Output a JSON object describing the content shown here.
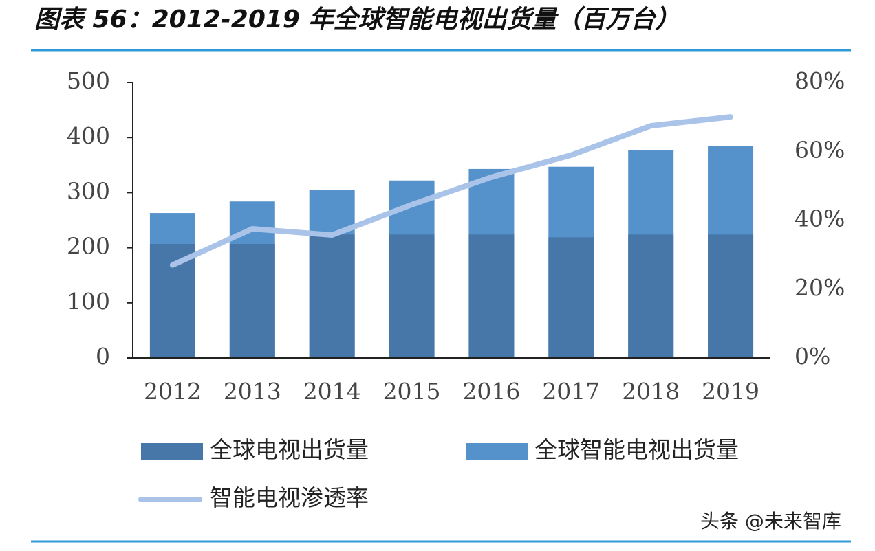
{
  "chart_data": {
    "type": "bar-line",
    "title": "图表 56：2012-2019 年全球智能电视出货量（百万台）",
    "categories": [
      "2012",
      "2013",
      "2014",
      "2015",
      "2016",
      "2017",
      "2018",
      "2019"
    ],
    "series": [
      {
        "name": "全球电视出货量",
        "color": "#4677a8",
        "values": [
          207,
          207,
          224,
          224,
          224,
          219,
          224,
          224
        ]
      },
      {
        "name": "全球智能电视出货量",
        "color": "#5592cc",
        "values": [
          263,
          284,
          305,
          322,
          343,
          347,
          377,
          385
        ]
      },
      {
        "name": "智能电视渗透率",
        "color": "#a9c4e8",
        "axis": "y2",
        "values": [
          27,
          37.5,
          35.7,
          44.5,
          52.5,
          58.9,
          67.4,
          70
        ]
      }
    ],
    "ylim": [
      0,
      500
    ],
    "yticks": [
      0,
      100,
      200,
      300,
      400,
      500
    ],
    "y2lim": [
      0,
      80
    ],
    "y2ticks": [
      {
        "value": 0,
        "label": "0%"
      },
      {
        "value": 20,
        "label": "20%"
      },
      {
        "value": 40,
        "label": "40%"
      },
      {
        "value": 60,
        "label": "60%"
      },
      {
        "value": 80,
        "label": "80%"
      }
    ],
    "watermark": "头条 @未来智库"
  }
}
